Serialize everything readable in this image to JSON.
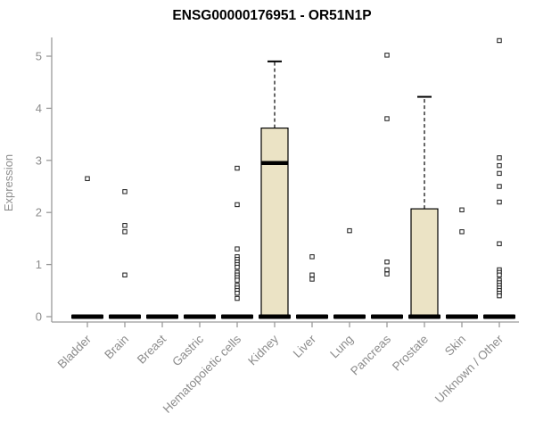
{
  "chart_data": {
    "type": "boxplot",
    "title": "ENSG00000176951 - OR51N1P",
    "ylabel": "Expression",
    "ylim": [
      0,
      5.4
    ],
    "yticks": [
      0,
      1,
      2,
      3,
      4,
      5
    ],
    "grid": false,
    "legend": "none",
    "axis_color": "#9a9a9a",
    "tick_label_color": "#8c8c8c",
    "box_fill": "#ebe3c5",
    "box_stroke": "#000000",
    "categories": [
      "Bladder",
      "Brain",
      "Breast",
      "Gastric",
      "Hematopoietic cells",
      "Kidney",
      "Liver",
      "Lung",
      "Pancreas",
      "Prostate",
      "Skin",
      "Unknown / Other"
    ],
    "series": [
      {
        "category": "Bladder",
        "q1": 0,
        "median": 0,
        "q3": 0,
        "whisker_low": 0,
        "whisker_high": 0,
        "outliers": [
          2.65
        ]
      },
      {
        "category": "Brain",
        "q1": 0,
        "median": 0,
        "q3": 0,
        "whisker_low": 0,
        "whisker_high": 0,
        "outliers": [
          2.4,
          1.75,
          1.63,
          0.8
        ]
      },
      {
        "category": "Breast",
        "q1": 0,
        "median": 0,
        "q3": 0,
        "whisker_low": 0,
        "whisker_high": 0,
        "outliers": []
      },
      {
        "category": "Gastric",
        "q1": 0,
        "median": 0,
        "q3": 0,
        "whisker_low": 0,
        "whisker_high": 0,
        "outliers": []
      },
      {
        "category": "Hematopoietic cells",
        "q1": 0,
        "median": 0,
        "q3": 0,
        "whisker_low": 0,
        "whisker_high": 0,
        "outliers": [
          2.85,
          2.15,
          1.3,
          1.15,
          1.1,
          1.05,
          1.0,
          0.95,
          0.85,
          0.8,
          0.75,
          0.7,
          0.6,
          0.55,
          0.5,
          0.45,
          0.35
        ]
      },
      {
        "category": "Kidney",
        "q1": 0,
        "median": 2.95,
        "q3": 3.62,
        "whisker_low": 0,
        "whisker_high": 4.9,
        "outliers": []
      },
      {
        "category": "Liver",
        "q1": 0,
        "median": 0,
        "q3": 0,
        "whisker_low": 0,
        "whisker_high": 0,
        "outliers": [
          1.15,
          0.8,
          0.72
        ]
      },
      {
        "category": "Lung",
        "q1": 0,
        "median": 0,
        "q3": 0,
        "whisker_low": 0,
        "whisker_high": 0,
        "outliers": [
          1.65
        ]
      },
      {
        "category": "Pancreas",
        "q1": 0,
        "median": 0,
        "q3": 0,
        "whisker_low": 0,
        "whisker_high": 0,
        "outliers": [
          5.02,
          3.8,
          1.05,
          0.9,
          0.82
        ]
      },
      {
        "category": "Prostate",
        "q1": 0,
        "median": 0.02,
        "q3": 2.07,
        "whisker_low": 0,
        "whisker_high": 4.22,
        "outliers": []
      },
      {
        "category": "Skin",
        "q1": 0,
        "median": 0,
        "q3": 0,
        "whisker_low": 0,
        "whisker_high": 0,
        "outliers": [
          2.05,
          1.63
        ]
      },
      {
        "category": "Unknown / Other",
        "q1": 0,
        "median": 0,
        "q3": 0,
        "whisker_low": 0,
        "whisker_high": 0,
        "outliers": [
          5.3,
          3.05,
          2.9,
          2.75,
          2.5,
          2.2,
          1.4,
          0.9,
          0.85,
          0.8,
          0.7,
          0.65,
          0.6,
          0.55,
          0.5,
          0.45,
          0.4
        ]
      }
    ]
  }
}
